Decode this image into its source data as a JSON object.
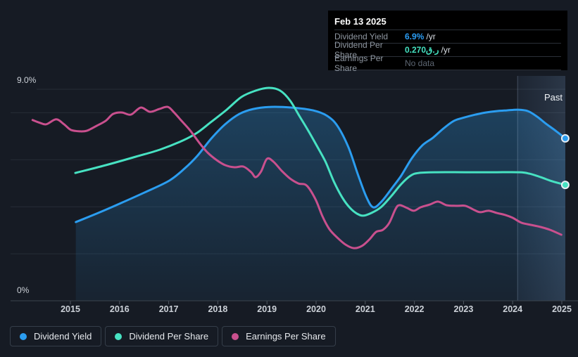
{
  "colors": {
    "background": "#161b24",
    "dividend_yield": "#2b9df0",
    "dividend_per_share": "#47e2c2",
    "earnings_per_share": "#c9508e",
    "tooltip_yield_value": "#2b9df4",
    "tooltip_dps_value": "#45e3c2",
    "tooltip_muted": "#5d6672",
    "axis_text": "#ccd1d8",
    "past_text": "#f2f5f8"
  },
  "tooltip": {
    "date": "Feb 13 2025",
    "rows": [
      {
        "label": "Dividend Yield",
        "value": "6.9%",
        "suffix": "/yr"
      },
      {
        "label": "Dividend Per Share",
        "value": "0.270ر.ق",
        "suffix": "/yr"
      },
      {
        "label": "Earnings Per Share",
        "value": "No data",
        "suffix": ""
      }
    ]
  },
  "legend": {
    "items": [
      {
        "label": "Dividend Yield"
      },
      {
        "label": "Dividend Per Share"
      },
      {
        "label": "Earnings Per Share"
      }
    ]
  },
  "chart_data": {
    "type": "line",
    "x_axis": {
      "ticks": [
        2015,
        2016,
        2017,
        2018,
        2019,
        2020,
        2021,
        2022,
        2023,
        2024,
        2025
      ]
    },
    "y_axis": {
      "min": 0,
      "max": 9,
      "top_label": "9.0%",
      "bottom_label": "0%",
      "gridline_values": [
        2,
        4,
        6,
        8,
        9
      ]
    },
    "past_region": {
      "start_year": 2024.1,
      "label": "Past"
    },
    "legend_position": "bottom-left",
    "grid": true,
    "series": [
      {
        "name": "Dividend Yield",
        "unit": "%",
        "area": true,
        "end_marker": true,
        "points": [
          [
            2015.11,
            3.35
          ],
          [
            2015.57,
            3.74
          ],
          [
            2016.0,
            4.13
          ],
          [
            2016.5,
            4.6
          ],
          [
            2017.01,
            5.11
          ],
          [
            2017.32,
            5.62
          ],
          [
            2017.58,
            6.16
          ],
          [
            2017.87,
            6.91
          ],
          [
            2018.15,
            7.51
          ],
          [
            2018.44,
            7.95
          ],
          [
            2018.72,
            8.16
          ],
          [
            2019.08,
            8.25
          ],
          [
            2019.51,
            8.22
          ],
          [
            2019.94,
            8.1
          ],
          [
            2020.23,
            7.86
          ],
          [
            2020.44,
            7.42
          ],
          [
            2020.66,
            6.52
          ],
          [
            2020.85,
            5.38
          ],
          [
            2021.02,
            4.43
          ],
          [
            2021.16,
            3.98
          ],
          [
            2021.33,
            4.22
          ],
          [
            2021.56,
            4.84
          ],
          [
            2021.73,
            5.32
          ],
          [
            2021.95,
            6.07
          ],
          [
            2022.16,
            6.61
          ],
          [
            2022.38,
            6.94
          ],
          [
            2022.59,
            7.33
          ],
          [
            2022.81,
            7.66
          ],
          [
            2023.02,
            7.8
          ],
          [
            2023.24,
            7.92
          ],
          [
            2023.45,
            8.01
          ],
          [
            2023.67,
            8.07
          ],
          [
            2023.88,
            8.1
          ],
          [
            2024.1,
            8.13
          ],
          [
            2024.31,
            8.07
          ],
          [
            2024.5,
            7.83
          ],
          [
            2024.68,
            7.53
          ],
          [
            2024.89,
            7.21
          ],
          [
            2025.07,
            6.91
          ]
        ]
      },
      {
        "name": "Dividend Per Share",
        "unit": "QAR (overlaid scale, 0.270 at end)",
        "area": false,
        "end_marker": true,
        "points": [
          [
            2015.1,
            5.44
          ],
          [
            2015.72,
            5.77
          ],
          [
            2016.33,
            6.13
          ],
          [
            2016.82,
            6.43
          ],
          [
            2017.29,
            6.82
          ],
          [
            2017.58,
            7.15
          ],
          [
            2017.87,
            7.62
          ],
          [
            2018.18,
            8.13
          ],
          [
            2018.48,
            8.67
          ],
          [
            2018.77,
            8.94
          ],
          [
            2019.04,
            9.06
          ],
          [
            2019.27,
            8.94
          ],
          [
            2019.47,
            8.52
          ],
          [
            2019.66,
            7.86
          ],
          [
            2019.84,
            7.24
          ],
          [
            2020.01,
            6.61
          ],
          [
            2020.19,
            5.92
          ],
          [
            2020.36,
            5.08
          ],
          [
            2020.53,
            4.4
          ],
          [
            2020.69,
            3.95
          ],
          [
            2020.83,
            3.71
          ],
          [
            2020.96,
            3.62
          ],
          [
            2021.13,
            3.74
          ],
          [
            2021.32,
            3.98
          ],
          [
            2021.52,
            4.43
          ],
          [
            2021.73,
            4.96
          ],
          [
            2021.92,
            5.32
          ],
          [
            2022.09,
            5.44
          ],
          [
            2022.45,
            5.47
          ],
          [
            2023.02,
            5.47
          ],
          [
            2023.6,
            5.47
          ],
          [
            2024.14,
            5.47
          ],
          [
            2024.34,
            5.41
          ],
          [
            2024.57,
            5.26
          ],
          [
            2024.81,
            5.08
          ],
          [
            2025.07,
            4.93
          ]
        ]
      },
      {
        "name": "Earnings Per Share",
        "unit": "overlaid scale, no data at end",
        "area": false,
        "end_marker": false,
        "points": [
          [
            2014.23,
            7.69
          ],
          [
            2014.38,
            7.57
          ],
          [
            2014.51,
            7.51
          ],
          [
            2014.71,
            7.72
          ],
          [
            2014.87,
            7.51
          ],
          [
            2015.01,
            7.27
          ],
          [
            2015.19,
            7.21
          ],
          [
            2015.34,
            7.24
          ],
          [
            2015.54,
            7.45
          ],
          [
            2015.72,
            7.66
          ],
          [
            2015.87,
            7.95
          ],
          [
            2016.05,
            8.01
          ],
          [
            2016.23,
            7.92
          ],
          [
            2016.43,
            8.22
          ],
          [
            2016.62,
            8.04
          ],
          [
            2016.81,
            8.16
          ],
          [
            2016.98,
            8.25
          ],
          [
            2017.11,
            8.01
          ],
          [
            2017.26,
            7.66
          ],
          [
            2017.44,
            7.24
          ],
          [
            2017.62,
            6.73
          ],
          [
            2017.79,
            6.31
          ],
          [
            2017.98,
            5.98
          ],
          [
            2018.15,
            5.77
          ],
          [
            2018.34,
            5.68
          ],
          [
            2018.52,
            5.71
          ],
          [
            2018.68,
            5.47
          ],
          [
            2018.77,
            5.26
          ],
          [
            2018.88,
            5.5
          ],
          [
            2019.0,
            6.04
          ],
          [
            2019.13,
            5.92
          ],
          [
            2019.3,
            5.53
          ],
          [
            2019.47,
            5.2
          ],
          [
            2019.64,
            4.99
          ],
          [
            2019.81,
            4.9
          ],
          [
            2019.99,
            4.31
          ],
          [
            2020.13,
            3.59
          ],
          [
            2020.27,
            3.05
          ],
          [
            2020.43,
            2.69
          ],
          [
            2020.6,
            2.39
          ],
          [
            2020.77,
            2.24
          ],
          [
            2020.93,
            2.33
          ],
          [
            2021.08,
            2.6
          ],
          [
            2021.22,
            2.93
          ],
          [
            2021.36,
            3.02
          ],
          [
            2021.49,
            3.32
          ],
          [
            2021.62,
            3.92
          ],
          [
            2021.7,
            4.07
          ],
          [
            2021.85,
            3.95
          ],
          [
            2021.99,
            3.83
          ],
          [
            2022.13,
            3.98
          ],
          [
            2022.32,
            4.1
          ],
          [
            2022.48,
            4.22
          ],
          [
            2022.65,
            4.07
          ],
          [
            2022.85,
            4.04
          ],
          [
            2023.04,
            4.04
          ],
          [
            2023.22,
            3.86
          ],
          [
            2023.34,
            3.77
          ],
          [
            2023.51,
            3.83
          ],
          [
            2023.67,
            3.74
          ],
          [
            2023.85,
            3.65
          ],
          [
            2024.0,
            3.53
          ],
          [
            2024.18,
            3.32
          ],
          [
            2024.37,
            3.23
          ],
          [
            2024.57,
            3.14
          ],
          [
            2024.76,
            3.02
          ],
          [
            2024.99,
            2.81
          ]
        ]
      }
    ]
  }
}
